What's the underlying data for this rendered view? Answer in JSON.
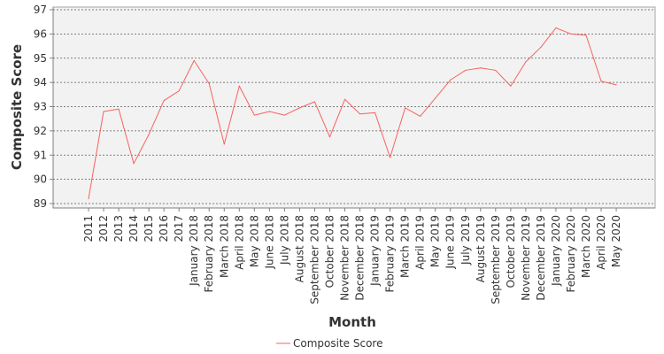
{
  "chart_data": {
    "type": "line",
    "title": "",
    "xlabel": "Month",
    "ylabel": "Composite Score",
    "ylim": [
      89,
      97
    ],
    "yticks": [
      89,
      90,
      91,
      92,
      93,
      94,
      95,
      96,
      97
    ],
    "grid": true,
    "legend_position": "bottom-center",
    "categories": [
      "2011",
      "2012",
      "2013",
      "2014",
      "2015",
      "2016",
      "2017",
      "January 2018",
      "February 2018",
      "March 2018",
      "April 2018",
      "May 2018",
      "June 2018",
      "July 2018",
      "August 2018",
      "September 2018",
      "October 2018",
      "November 2018",
      "December 2018",
      "January 2019",
      "February 2019",
      "March 2019",
      "April 2019",
      "May 2019",
      "June 2019",
      "July 2019",
      "August 2019",
      "September 2019",
      "October 2019",
      "November 2019",
      "December 2019",
      "January 2020",
      "February 2020",
      "March 2020",
      "April 2020",
      "May 2020"
    ],
    "series": [
      {
        "name": "Composite Score",
        "color": "#f8625f",
        "values": [
          89.2,
          92.8,
          92.9,
          90.65,
          91.85,
          93.25,
          93.65,
          94.9,
          93.95,
          91.45,
          93.85,
          92.65,
          92.8,
          92.65,
          92.95,
          93.2,
          91.75,
          93.3,
          92.7,
          92.75,
          90.9,
          92.95,
          92.6,
          93.35,
          94.1,
          94.5,
          94.6,
          94.5,
          93.85,
          94.85,
          95.45,
          96.25,
          96.0,
          95.95,
          94.05,
          93.9
        ]
      }
    ]
  }
}
